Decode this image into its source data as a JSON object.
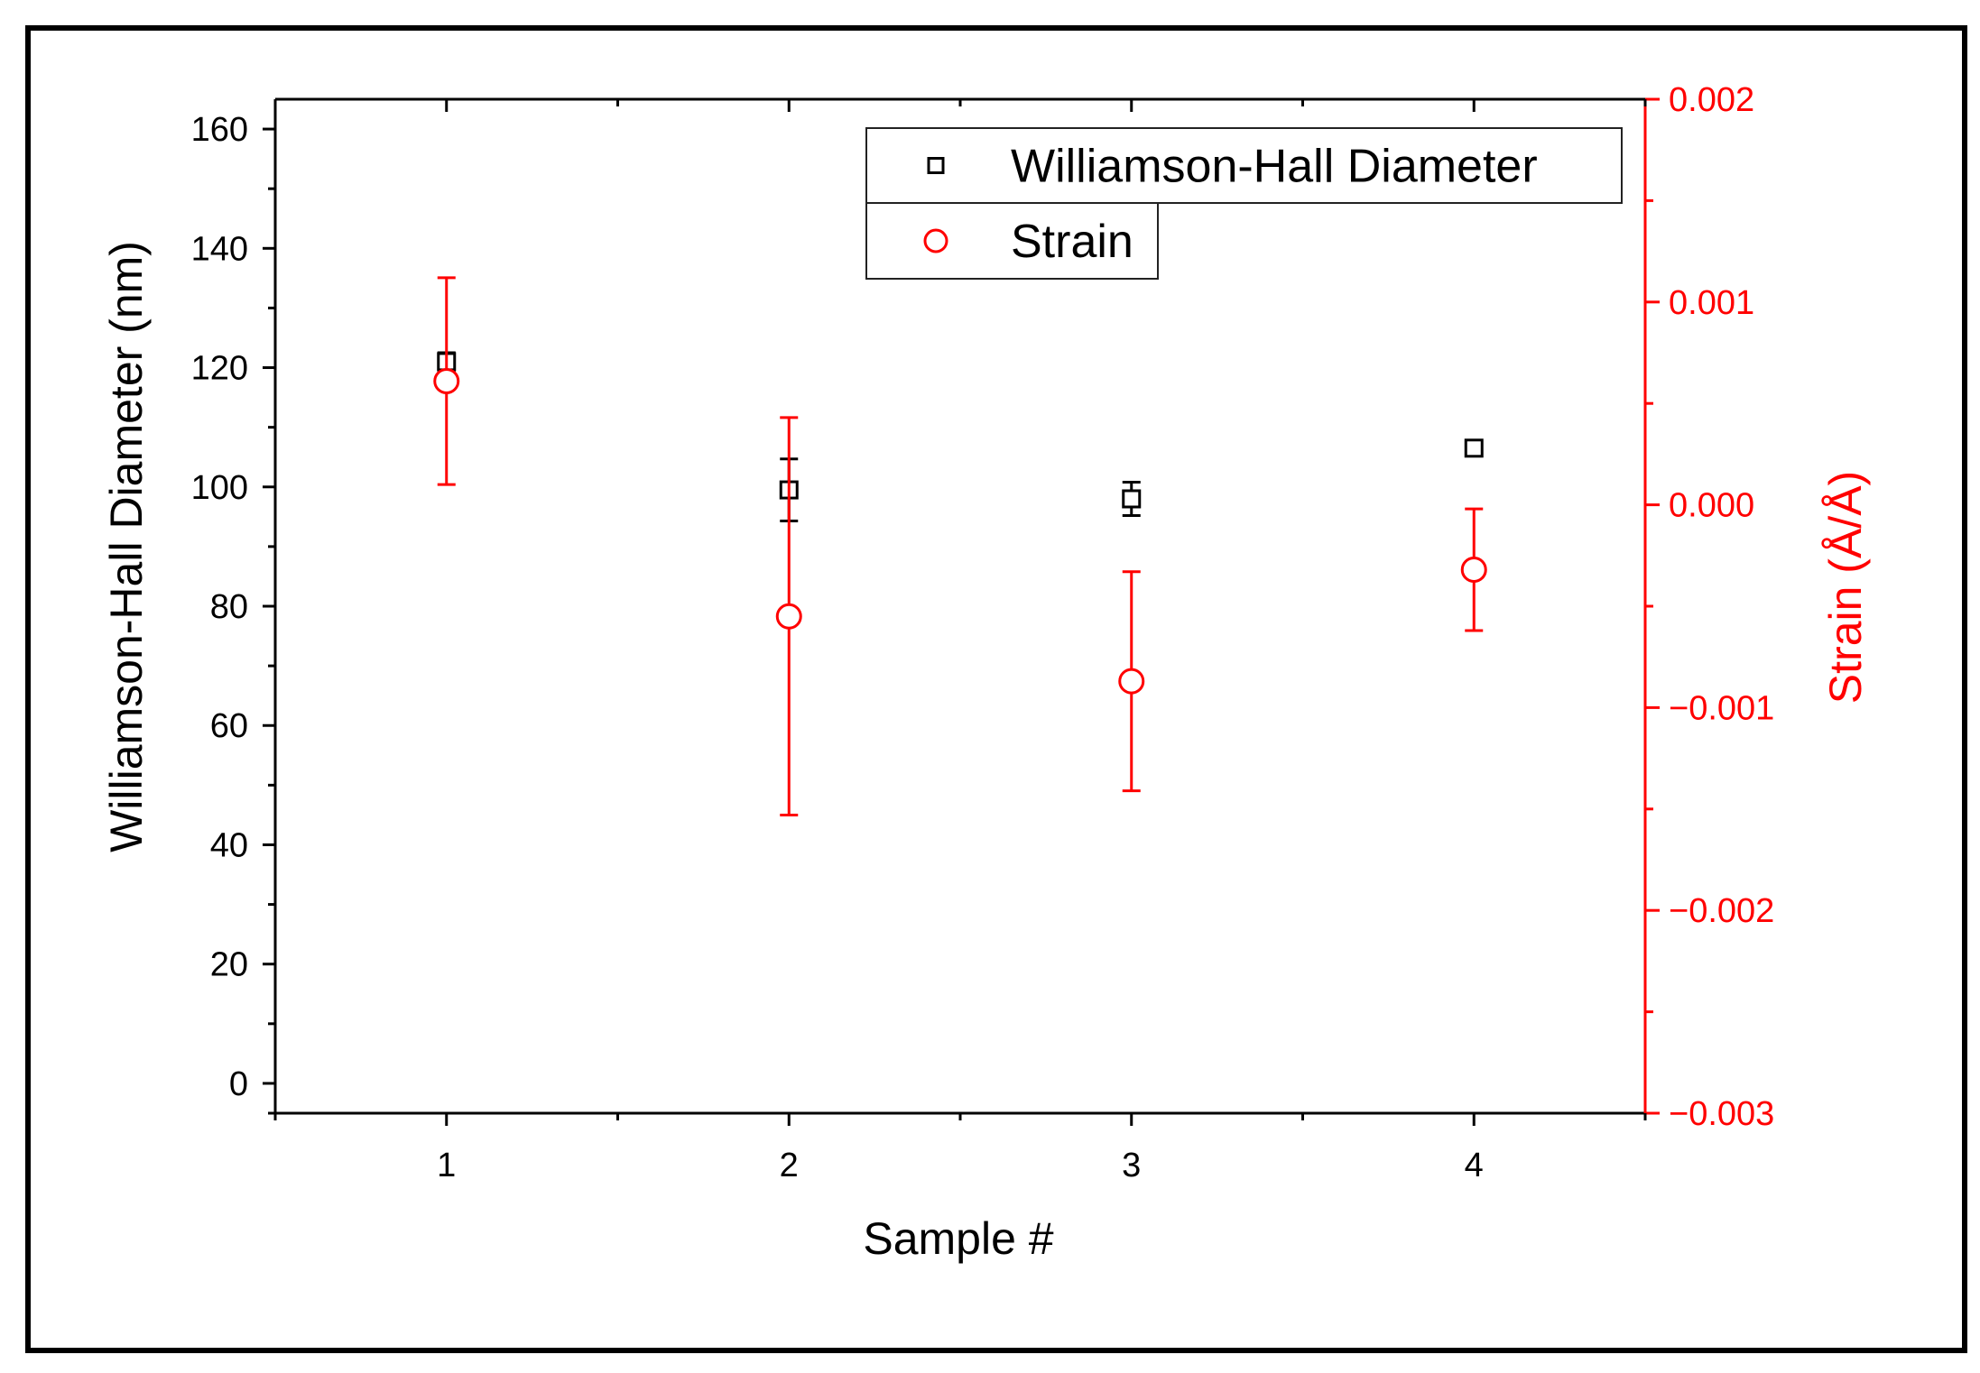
{
  "chart_data": {
    "type": "scatter",
    "title": "",
    "xlabel": "Sample #",
    "ylabel": "Williamson-Hall Diameter (nm)",
    "y2label": "Strain (Å/Å)",
    "x_ticks": [
      "1",
      "2",
      "3",
      "4"
    ],
    "y_ticks": [
      "0",
      "20",
      "40",
      "60",
      "80",
      "100",
      "120",
      "140",
      "160"
    ],
    "y2_ticks": [
      "0.002",
      "0.001",
      "0.000",
      "−0.001",
      "−0.002",
      "−0.003"
    ],
    "xlim": [
      0.5,
      4.5
    ],
    "ylim": [
      -5,
      165
    ],
    "y2lim": [
      -0.003,
      0.002
    ],
    "legend_position": "top-right",
    "colors": {
      "diameter": "#000000",
      "strain": "#ff0000"
    },
    "series": [
      {
        "name": "Williamson-Hall Diameter",
        "axis": "left",
        "marker": "square",
        "x": [
          1,
          2,
          3,
          4
        ],
        "y": [
          121,
          99.5,
          98,
          106.5
        ],
        "err": [
          1.5,
          5.2,
          2.8,
          0.8
        ]
      },
      {
        "name": "Strain",
        "axis": "right",
        "marker": "circle",
        "x": [
          1,
          2,
          3,
          4
        ],
        "y": [
          0.00061,
          -0.00055,
          -0.00087,
          -0.00032
        ],
        "err": [
          0.00051,
          0.00098,
          0.00054,
          0.0003
        ]
      }
    ]
  }
}
